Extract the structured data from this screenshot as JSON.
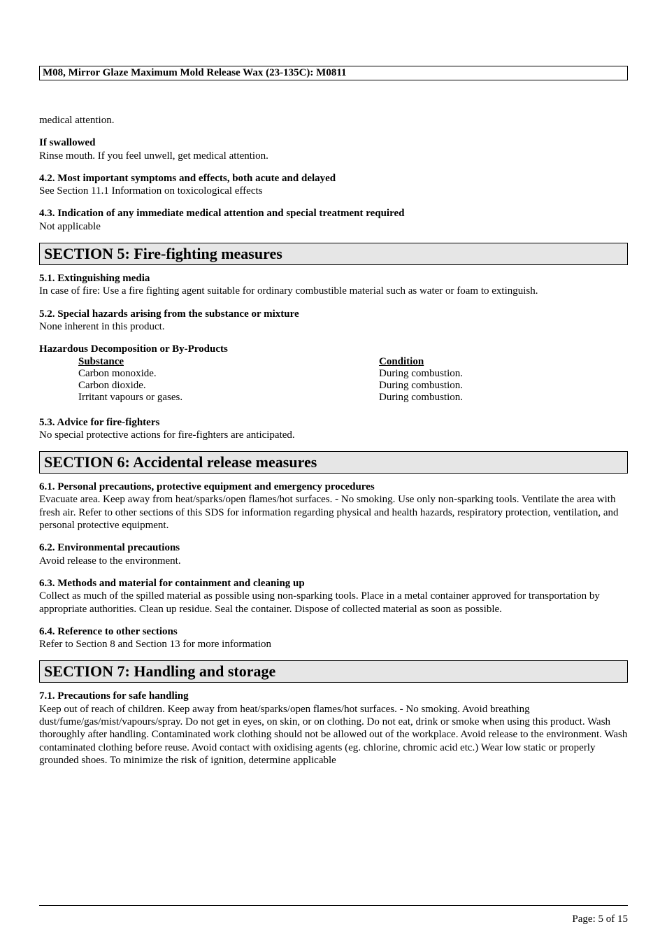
{
  "header": {
    "title": "M08, Mirror Glaze Maximum Mold Release Wax (23-135C): M0811"
  },
  "pre_section": {
    "continuation": "medical attention.",
    "if_swallowed_head": "If swallowed",
    "if_swallowed_body": "Rinse mouth.  If you feel unwell, get medical attention.",
    "s4_2_head": "4.2. Most important symptoms and effects, both acute and delayed",
    "s4_2_body": "See Section 11.1 Information on toxicological effects",
    "s4_3_head": "4.3. Indication of any immediate medical attention and special treatment required",
    "s4_3_body": "Not applicable"
  },
  "section5": {
    "title": "SECTION 5: Fire-fighting measures",
    "s5_1_head": "5.1. Extinguishing media",
    "s5_1_body": "In case of fire: Use a fire fighting agent suitable for ordinary combustible material such as water or foam to extinguish.",
    "s5_2_head": "5.2. Special hazards arising from the substance or mixture",
    "s5_2_body": "None inherent in this product.",
    "byprod_head": "Hazardous Decomposition or By-Products",
    "byprod_col1_head": "Substance",
    "byprod_col2_head": "Condition",
    "byprod_rows": [
      {
        "sub": "Carbon monoxide.",
        "cond": "During combustion."
      },
      {
        "sub": "Carbon dioxide.",
        "cond": "During combustion."
      },
      {
        "sub": "Irritant vapours or gases.",
        "cond": "During combustion."
      }
    ],
    "s5_3_head": "5.3. Advice for fire-fighters",
    "s5_3_body": "No special protective actions for fire-fighters are anticipated."
  },
  "section6": {
    "title": "SECTION 6: Accidental release measures",
    "s6_1_head": "6.1. Personal precautions, protective equipment and emergency procedures",
    "s6_1_body": "Evacuate area.  Keep away from heat/sparks/open flames/hot surfaces. - No smoking.  Use only non-sparking tools.  Ventilate the area with fresh air.  Refer to other sections of this SDS for information regarding physical and health hazards, respiratory protection, ventilation, and personal protective equipment.",
    "s6_2_head": "6.2. Environmental precautions",
    "s6_2_body": "Avoid release to the environment.",
    "s6_3_head": "6.3. Methods and material for containment and cleaning up",
    "s6_3_body": "Collect as much of the spilled material as possible using non-sparking tools.  Place in a metal container approved for transportation by appropriate authorities.  Clean up residue.  Seal the container.  Dispose of collected material as soon as possible.",
    "s6_4_head": "6.4. Reference to other sections",
    "s6_4_body": "Refer to Section 8 and Section 13 for more information"
  },
  "section7": {
    "title": "SECTION 7: Handling and storage",
    "s7_1_head": "7.1. Precautions for safe handling",
    "s7_1_body": "Keep out of reach of children.  Keep away from heat/sparks/open flames/hot surfaces. - No smoking.  Avoid breathing dust/fume/gas/mist/vapours/spray.  Do not get in eyes, on skin, or on clothing.  Do not eat, drink or smoke when using this product.  Wash thoroughly after handling.  Contaminated work clothing should not be allowed out of the workplace.  Avoid release to the environment.  Wash contaminated clothing before reuse.  Avoid contact with oxidising agents (eg. chlorine, chromic acid etc.)  Wear low static or properly grounded shoes.  To minimize the risk of ignition, determine applicable"
  },
  "footer": {
    "page": "Page: 5 of  15"
  }
}
